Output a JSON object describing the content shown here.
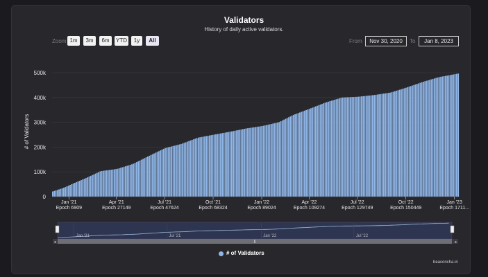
{
  "header": {
    "title": "Validators",
    "subtitle": "History of daily active validators."
  },
  "toolbar": {
    "zoom_label": "Zoom",
    "zoom_buttons": [
      "1m",
      "3m",
      "6m",
      "YTD",
      "1y",
      "All"
    ],
    "active_zoom": "All",
    "from_label": "From",
    "from_value": "Nov 30, 2020",
    "to_label": "To",
    "to_value": "Jan 8, 2023"
  },
  "chart_data": {
    "type": "bar",
    "ylabel": "# of Validators",
    "ylim": [
      0,
      500000
    ],
    "yticks": [
      {
        "value": 0,
        "label": "0"
      },
      {
        "value": 100000,
        "label": "100k"
      },
      {
        "value": 200000,
        "label": "200k"
      },
      {
        "value": 300000,
        "label": "300k"
      },
      {
        "value": 400000,
        "label": "400k"
      },
      {
        "value": 500000,
        "label": "500k"
      }
    ],
    "xrange": [
      "2020-11-30",
      "2023-01-08"
    ],
    "xticks": [
      {
        "date": "2021-01-01",
        "line1": "Jan '21",
        "line2": "Epoch 6909"
      },
      {
        "date": "2021-04-01",
        "line1": "Apr '21",
        "line2": "Epoch 27149"
      },
      {
        "date": "2021-07-01",
        "line1": "Jul '21",
        "line2": "Epoch 47624"
      },
      {
        "date": "2021-10-01",
        "line1": "Oct '21",
        "line2": "Epoch 68324"
      },
      {
        "date": "2022-01-01",
        "line1": "Jan '22",
        "line2": "Epoch 89024"
      },
      {
        "date": "2022-04-01",
        "line1": "Apr '22",
        "line2": "Epoch 109274"
      },
      {
        "date": "2022-07-01",
        "line1": "Jul '22",
        "line2": "Epoch 129749"
      },
      {
        "date": "2022-10-01",
        "line1": "Oct '22",
        "line2": "Epoch 150449"
      },
      {
        "date": "2023-01-01",
        "line1": "Jan '23",
        "line2": "Epoch 1711..."
      }
    ],
    "series": [
      {
        "name": "# of Validators",
        "color": "#8fb6e8",
        "points": [
          [
            "2020-11-30",
            21000
          ],
          [
            "2020-12-20",
            35000
          ],
          [
            "2021-01-10",
            55000
          ],
          [
            "2021-02-01",
            75000
          ],
          [
            "2021-03-01",
            103000
          ],
          [
            "2021-04-01",
            112000
          ],
          [
            "2021-05-01",
            132000
          ],
          [
            "2021-06-01",
            165000
          ],
          [
            "2021-07-01",
            196000
          ],
          [
            "2021-08-01",
            213000
          ],
          [
            "2021-09-01",
            238000
          ],
          [
            "2021-10-01",
            250000
          ],
          [
            "2021-11-01",
            262000
          ],
          [
            "2021-12-01",
            275000
          ],
          [
            "2022-01-01",
            285000
          ],
          [
            "2022-02-01",
            300000
          ],
          [
            "2022-03-01",
            330000
          ],
          [
            "2022-04-01",
            355000
          ],
          [
            "2022-05-01",
            380000
          ],
          [
            "2022-06-01",
            400000
          ],
          [
            "2022-07-01",
            403000
          ],
          [
            "2022-08-01",
            410000
          ],
          [
            "2022-09-01",
            420000
          ],
          [
            "2022-10-01",
            440000
          ],
          [
            "2022-11-01",
            463000
          ],
          [
            "2022-12-01",
            482000
          ],
          [
            "2023-01-08",
            497000
          ]
        ]
      }
    ],
    "navigator": {
      "labels": [
        "Jan '21",
        "Jul '21",
        "Jan '22",
        "Jul '22"
      ]
    },
    "legend": "bottom-center",
    "grid": true
  },
  "footer": {
    "credit": "beaconcha.in"
  }
}
